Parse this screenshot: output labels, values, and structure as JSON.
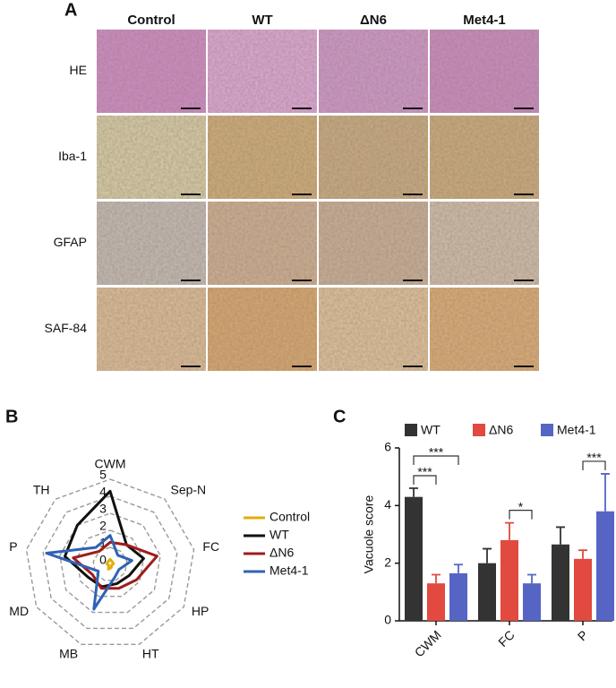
{
  "panel_labels": [
    "A",
    "B",
    "C"
  ],
  "histology": {
    "columns": [
      "Control",
      "WT",
      "ΔN6",
      "Met4-1"
    ],
    "rows": [
      "HE",
      "Iba-1",
      "GFAP",
      "SAF-84"
    ]
  },
  "chart_data": [
    {
      "type": "radar",
      "axes": [
        "CWM",
        "Sep-N",
        "FC",
        "HP",
        "HT",
        "MB",
        "MD",
        "P",
        "TH"
      ],
      "rlim": [
        0,
        5
      ],
      "rticks": [
        0,
        1,
        2,
        3,
        4,
        5
      ],
      "legend": "right",
      "series": [
        {
          "name": "Control",
          "color": "#e3ad0c",
          "values": [
            0.3,
            0.2,
            0.2,
            0.1,
            0.2,
            0.3,
            0.1,
            0.2,
            0.2
          ]
        },
        {
          "name": "WT",
          "color": "#111111",
          "values": [
            4.3,
            1.5,
            2.0,
            1.3,
            1.2,
            1.4,
            1.5,
            2.7,
            3.0
          ]
        },
        {
          "name": "ΔN6",
          "color": "#a01c1c",
          "values": [
            1.3,
            1.5,
            2.8,
            1.8,
            1.5,
            1.5,
            1.2,
            2.2,
            1.0
          ]
        },
        {
          "name": "Met4-1",
          "color": "#2f62b5",
          "values": [
            1.7,
            0.7,
            1.3,
            0.6,
            0.8,
            2.8,
            0.8,
            3.8,
            1.3
          ]
        }
      ]
    },
    {
      "type": "bar",
      "ylabel": "Vacuole score",
      "categories": [
        "CWM",
        "FC",
        "P"
      ],
      "ylim": [
        0,
        6
      ],
      "yticks": [
        0,
        2,
        4,
        6
      ],
      "series": [
        {
          "name": "WT",
          "color": "#333333",
          "values": [
            4.3,
            2.0,
            2.65
          ],
          "errors": [
            0.3,
            0.5,
            0.6
          ]
        },
        {
          "name": "ΔN6",
          "color": "#e2493f",
          "values": [
            1.3,
            2.8,
            2.15
          ],
          "errors": [
            0.3,
            0.6,
            0.3
          ]
        },
        {
          "name": "Met4-1",
          "color": "#5665c4",
          "values": [
            1.65,
            1.3,
            3.8
          ],
          "errors": [
            0.3,
            0.3,
            1.3
          ]
        }
      ],
      "annotations": [
        {
          "text": "***",
          "category": "CWM",
          "between": [
            "WT",
            "ΔN6"
          ]
        },
        {
          "text": "***",
          "category": "CWM",
          "between": [
            "WT",
            "Met4-1"
          ]
        },
        {
          "text": "*",
          "category": "FC",
          "between": [
            "ΔN6",
            "Met4-1"
          ]
        },
        {
          "text": "***",
          "category": "P",
          "between": [
            "ΔN6",
            "Met4-1"
          ]
        }
      ]
    }
  ]
}
